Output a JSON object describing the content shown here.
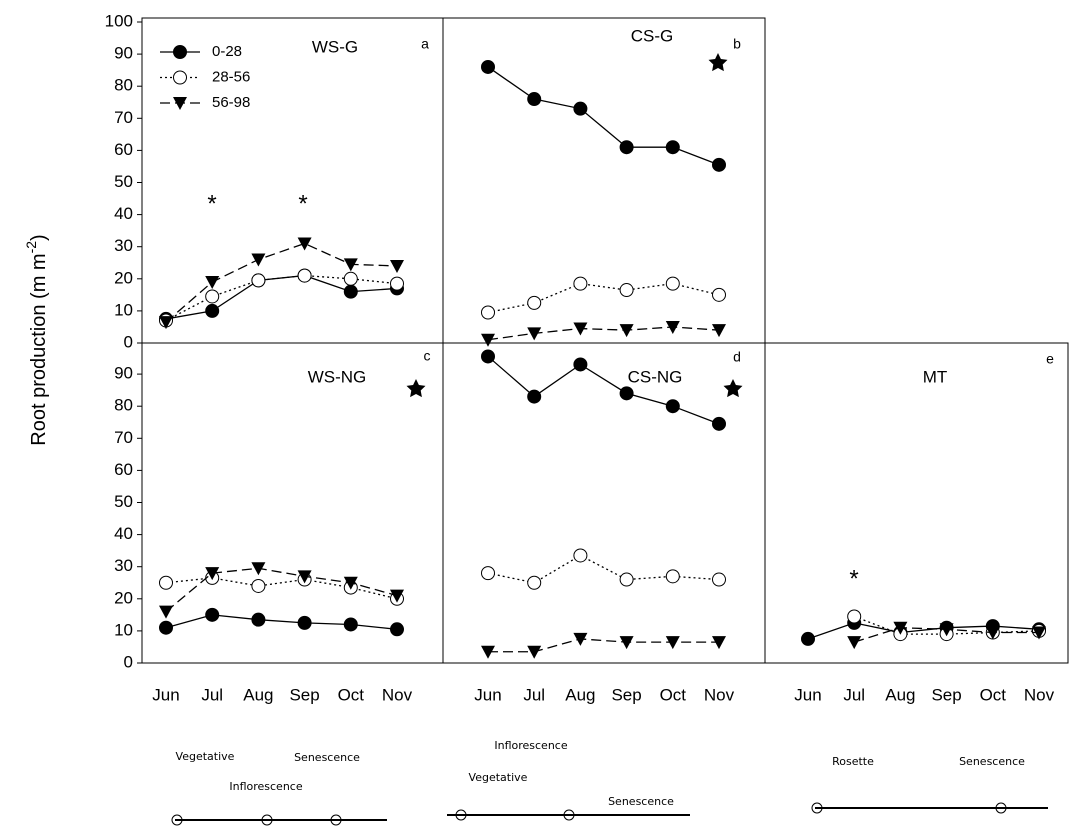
{
  "ylabel": {
    "text": "Root production (m m",
    "sup": "-2",
    "end": ")"
  },
  "phenology": [
    [
      "Vegetative",
      "Senescence",
      "Inflorescence"
    ],
    [
      "Inflorescence",
      "Vegetative",
      "Senescence"
    ],
    [
      "Rosette",
      "Senescence"
    ]
  ],
  "chart_data": [
    {
      "type": "line",
      "title": "WS-G",
      "label": "a",
      "ylim": [
        0,
        100
      ],
      "yticks": [
        0,
        10,
        20,
        30,
        40,
        50,
        60,
        70,
        80,
        90,
        100
      ],
      "legend": "upper left",
      "annotations": [
        "*",
        "*"
      ],
      "series": [
        {
          "name": "0-28",
          "color": "#000000",
          "dash": "solid",
          "marker": "circle-filled",
          "values": [
            7.5,
            10,
            19.5,
            21,
            16,
            17
          ]
        },
        {
          "name": "28-56",
          "color": "#000000",
          "dash": "dotted",
          "marker": "circle-open",
          "values": [
            7,
            14.5,
            19.5,
            21,
            20,
            18.5
          ]
        },
        {
          "name": "56-98",
          "color": "#000000",
          "dash": "dashed",
          "marker": "triangle-down",
          "values": [
            6.5,
            19,
            26,
            31,
            24.5,
            24
          ]
        }
      ]
    },
    {
      "type": "line",
      "title": "CS-G",
      "label": "b",
      "ylim": [
        0,
        100
      ],
      "series": [
        {
          "color": "#000000",
          "dash": "solid",
          "marker": "circle-filled",
          "values": [
            86,
            76,
            73,
            61,
            61,
            55.5
          ]
        },
        {
          "color": "#000000",
          "dash": "dotted",
          "marker": "circle-open",
          "values": [
            9.5,
            12.5,
            18.5,
            16.5,
            18.5,
            15
          ]
        },
        {
          "color": "#000000",
          "dash": "dashed",
          "marker": "triangle-down",
          "values": [
            1,
            3,
            4.5,
            4,
            5,
            4
          ]
        }
      ]
    },
    {
      "type": "line",
      "title": "WS-NG",
      "label": "c",
      "ylim": [
        0,
        100
      ],
      "yticks": [
        0,
        10,
        20,
        30,
        40,
        50,
        60,
        70,
        80,
        90
      ],
      "categories": [
        "Jun",
        "Jul",
        "Aug",
        "Sep",
        "Oct",
        "Nov"
      ],
      "series": [
        {
          "color": "#000000",
          "dash": "solid",
          "marker": "circle-filled",
          "values": [
            11,
            15,
            13.5,
            12.5,
            12,
            10.5
          ]
        },
        {
          "color": "#000000",
          "dash": "dotted",
          "marker": "circle-open",
          "values": [
            25,
            26.5,
            24,
            26,
            23.5,
            20
          ]
        },
        {
          "color": "#000000",
          "dash": "dashed",
          "marker": "triangle-down",
          "values": [
            16,
            28,
            29.5,
            27,
            25,
            21
          ]
        }
      ]
    },
    {
      "type": "line",
      "title": "CS-NG",
      "label": "d",
      "ylim": [
        0,
        100
      ],
      "categories": [
        "Jun",
        "Jul",
        "Aug",
        "Sep",
        "Oct",
        "Nov"
      ],
      "series": [
        {
          "color": "#000000",
          "dash": "solid",
          "marker": "circle-filled",
          "values": [
            95.5,
            83,
            93,
            84,
            80,
            74.5
          ]
        },
        {
          "color": "#000000",
          "dash": "dotted",
          "marker": "circle-open",
          "values": [
            28,
            25,
            33.5,
            26,
            27,
            26
          ]
        },
        {
          "color": "#000000",
          "dash": "dashed",
          "marker": "triangle-down",
          "values": [
            3.5,
            3.5,
            7.5,
            6.5,
            6.5,
            6.5
          ]
        }
      ]
    },
    {
      "type": "line",
      "title": "MT",
      "label": "e",
      "ylim": [
        0,
        100
      ],
      "annotations": [
        "*"
      ],
      "categories": [
        "Jun",
        "Jul",
        "Aug",
        "Sep",
        "Oct",
        "Nov"
      ],
      "series": [
        {
          "color": "#000000",
          "dash": "solid",
          "marker": "circle-filled",
          "values": [
            7.5,
            12.5,
            9.5,
            11,
            11.5,
            10.5
          ]
        },
        {
          "color": "#000000",
          "dash": "dotted",
          "marker": "circle-open",
          "values": [
            null,
            14.5,
            9,
            9,
            9.5,
            10
          ]
        },
        {
          "color": "#000000",
          "dash": "dashed",
          "marker": "triangle-down",
          "values": [
            null,
            6.5,
            11,
            10.5,
            9.5,
            9.5
          ]
        }
      ]
    }
  ]
}
